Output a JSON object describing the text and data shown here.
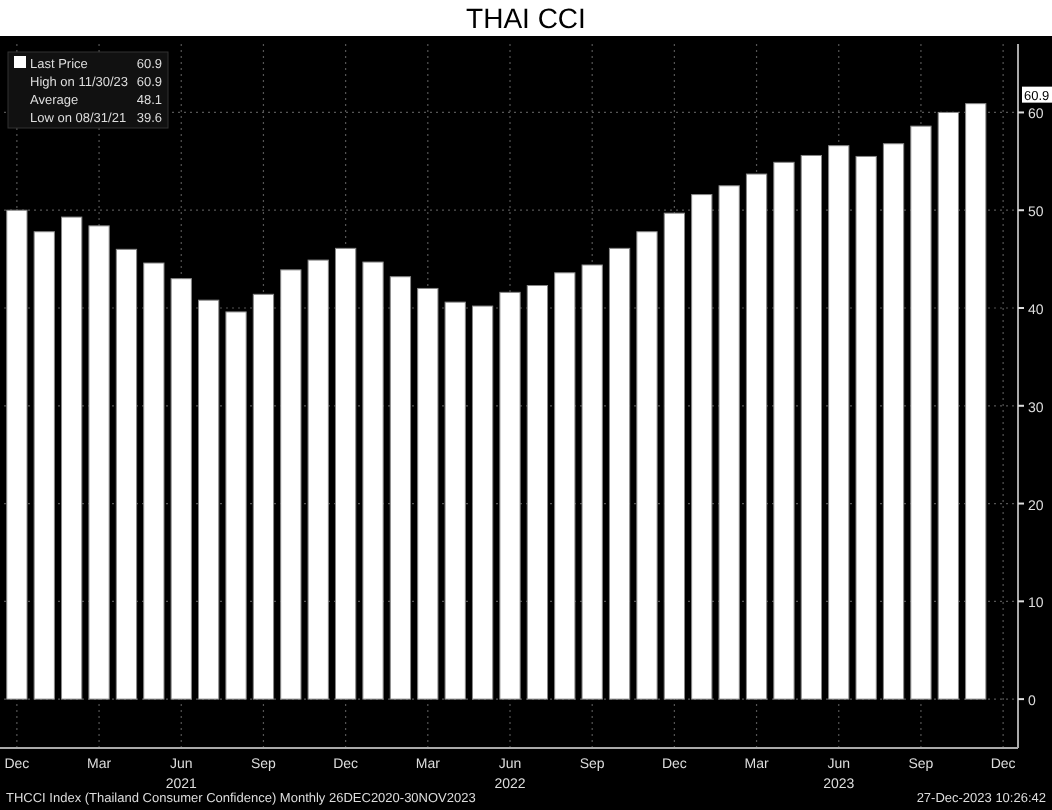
{
  "chart_data": {
    "type": "bar",
    "title": "THAI CCI",
    "categories": [
      "Dec",
      null,
      null,
      "Mar",
      null,
      null,
      "Jun\n2021",
      null,
      null,
      "Sep",
      null,
      null,
      "Dec",
      null,
      null,
      "Mar",
      null,
      null,
      "Jun\n2022",
      null,
      null,
      "Sep",
      null,
      null,
      "Dec",
      null,
      null,
      "Mar",
      null,
      null,
      "Jun\n2023",
      null,
      null,
      "Sep",
      null,
      null,
      "Dec"
    ],
    "series": [
      {
        "name": "Last Price",
        "color": "#ffffff",
        "values": [
          50.0,
          47.8,
          49.3,
          48.4,
          46.0,
          44.6,
          43.0,
          40.8,
          39.6,
          41.4,
          43.9,
          44.9,
          46.1,
          44.7,
          43.2,
          42.0,
          40.6,
          40.2,
          41.6,
          42.3,
          43.6,
          44.4,
          46.1,
          47.8,
          49.7,
          51.6,
          52.5,
          53.7,
          54.9,
          55.6,
          56.6,
          55.5,
          56.8,
          58.6,
          60.0,
          60.9,
          null
        ]
      }
    ],
    "ylim": [
      -5,
      67
    ],
    "yticks": [
      0,
      10,
      20,
      30,
      40,
      50,
      60
    ],
    "grid": true,
    "legend": "top left",
    "annotations": [
      "60.9",
      "High on 11/30/23",
      "60.9",
      "Average",
      "48.1",
      "Low on 08/31/21",
      "39.6",
      "THCCI Index (Thailand Consumer Confidence)  Monthly 26DEC2020-30NOV2023",
      "27-Dec-2023 10:26:42",
      "60.9"
    ]
  }
}
